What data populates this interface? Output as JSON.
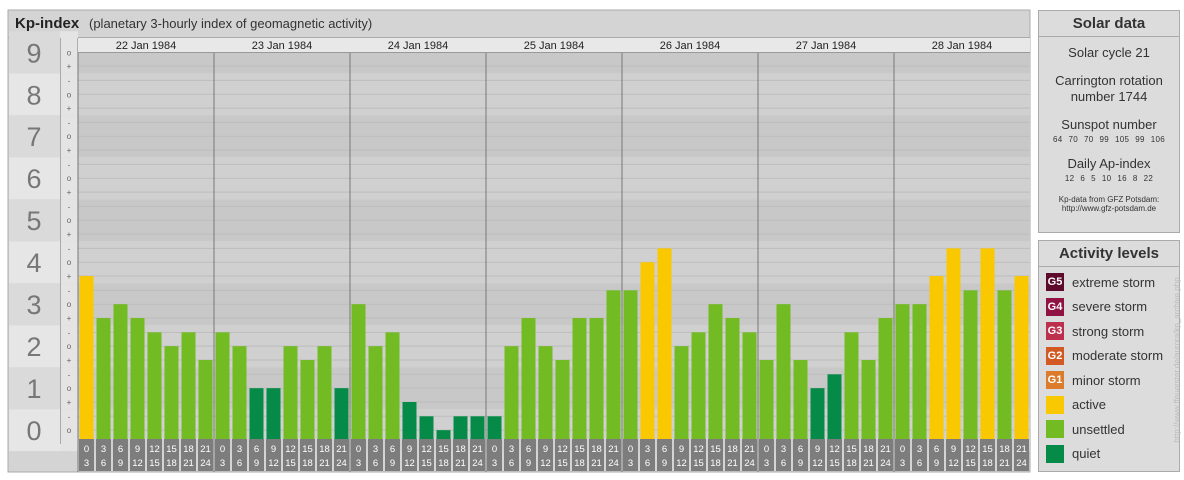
{
  "header": {
    "title": "Kp-index",
    "subtitle": "(planetary 3-hourly index of geomagnetic activity)"
  },
  "chart_data": {
    "type": "bar",
    "title": "Kp-index",
    "subtitle": "(planetary 3-hourly index of geomagnetic activity)",
    "ylim": [
      0,
      9
    ],
    "y_ticks": [
      "0",
      "1",
      "2",
      "3",
      "4",
      "5",
      "6",
      "7",
      "8",
      "9"
    ],
    "sub_ticks": [
      "o",
      "+",
      "-"
    ],
    "days": [
      "22 Jan 1984",
      "23 Jan 1984",
      "24 Jan 1984",
      "25 Jan 1984",
      "26 Jan 1984",
      "27 Jan 1984",
      "28 Jan 1984"
    ],
    "hour_start": [
      "0",
      "3",
      "6",
      "9",
      "12",
      "15",
      "18",
      "21"
    ],
    "hour_end": [
      "3",
      "6",
      "9",
      "12",
      "15",
      "18",
      "21",
      "24"
    ],
    "values": [
      3.67,
      2.67,
      3.0,
      2.67,
      2.33,
      2.0,
      2.33,
      1.67,
      2.33,
      2.0,
      1.0,
      1.0,
      2.0,
      1.67,
      2.0,
      1.0,
      3.0,
      2.0,
      2.33,
      0.67,
      0.33,
      0.0,
      0.33,
      0.33,
      0.33,
      2.0,
      2.67,
      2.0,
      1.67,
      2.67,
      2.67,
      3.33,
      3.33,
      4.0,
      4.33,
      2.0,
      2.33,
      3.0,
      2.67,
      2.33,
      1.67,
      3.0,
      1.67,
      1.0,
      1.33,
      2.33,
      1.67,
      2.67,
      3.0,
      3.0,
      3.67,
      4.33,
      3.33,
      4.33,
      3.33,
      3.67
    ],
    "colors": {
      "quiet": "#058b47",
      "unsettled": "#72bb23",
      "active": "#f9c800",
      "g1": "#dd7b2c",
      "g2": "#d25a22",
      "g3": "#bc2f4d",
      "g4": "#8f1243",
      "g5": "#5d0a2c"
    },
    "band_colors": [
      "#d0d0d0",
      "#c8c8c8"
    ],
    "plot_background": "#dedede",
    "grid": true,
    "legend": "right"
  },
  "solar": {
    "title": "Solar data",
    "cycle": "Solar cycle 21",
    "carrington_line1": "Carrington rotation",
    "carrington_line2": "number 1744",
    "sunspot_label": "Sunspot number",
    "sunspot_values": [
      "64",
      "70",
      "70",
      "99",
      "105",
      "99",
      "106"
    ],
    "ap_label": "Daily Ap-index",
    "ap_values": [
      "12",
      "6",
      "5",
      "10",
      "16",
      "8",
      "22"
    ],
    "source_line1": "Kp-data from GFZ Potsdam:",
    "source_line2": "http://www.gfz-potsdam.de"
  },
  "legend": {
    "title": "Activity levels",
    "items": [
      {
        "code": "G5",
        "label": "extreme storm",
        "color": "#5d0a2c"
      },
      {
        "code": "G4",
        "label": "severe storm",
        "color": "#8f1243"
      },
      {
        "code": "G3",
        "label": "strong storm",
        "color": "#bc2f4d"
      },
      {
        "code": "G2",
        "label": "moderate storm",
        "color": "#d25a22"
      },
      {
        "code": "G1",
        "label": "minor storm",
        "color": "#dd7b2c"
      },
      {
        "code": "",
        "label": "active",
        "color": "#f9c800"
      },
      {
        "code": "",
        "label": "unsettled",
        "color": "#72bb23"
      },
      {
        "code": "",
        "label": "quiet",
        "color": "#058b47"
      }
    ]
  },
  "credit": "http://www.ffeuerster.de/aurora/kp_archive.php"
}
